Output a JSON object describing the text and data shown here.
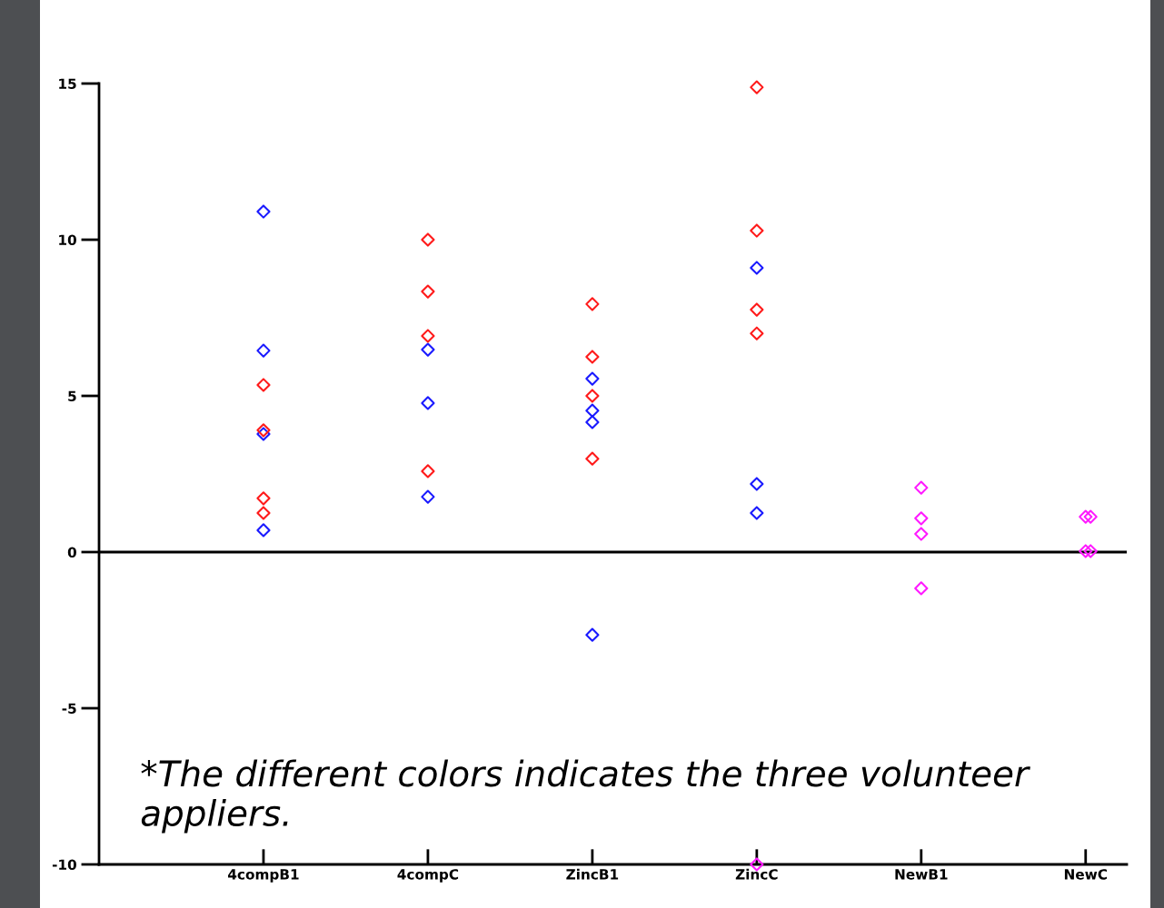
{
  "chart_data": {
    "type": "scatter",
    "categories": [
      "4compB1",
      "4compC",
      "ZincB1",
      "ZincC",
      "NewB1",
      "NewC"
    ],
    "series": [
      {
        "color": "#1a1aff",
        "x": [
          "4compB1",
          "4compB1",
          "4compB1",
          "4compB1",
          "4compC",
          "4compC",
          "4compC",
          "ZincB1",
          "ZincB1",
          "ZincB1",
          "ZincB1",
          "ZincC",
          "ZincC",
          "ZincC"
        ],
        "values": [
          10.9,
          6.45,
          3.78,
          0.7,
          6.48,
          4.77,
          1.77,
          5.55,
          4.53,
          4.16,
          -2.65,
          9.1,
          2.18,
          1.25
        ]
      },
      {
        "color": "#ff1a1a",
        "x": [
          "4compB1",
          "4compB1",
          "4compB1",
          "4compB1",
          "4compC",
          "4compC",
          "4compC",
          "4compC",
          "ZincB1",
          "ZincB1",
          "ZincB1",
          "ZincB1",
          "ZincC",
          "ZincC",
          "ZincC",
          "ZincC"
        ],
        "values": [
          5.35,
          3.9,
          1.72,
          1.25,
          10.0,
          8.34,
          6.92,
          2.59,
          7.94,
          6.25,
          5.0,
          2.99,
          14.88,
          10.29,
          7.76,
          7.0
        ]
      },
      {
        "color": "#ff1aff",
        "x": [
          "ZincC",
          "NewB1",
          "NewB1",
          "NewB1",
          "NewB1",
          "NewC",
          "NewC",
          "NewC",
          "NewC"
        ],
        "values": [
          -10.0,
          2.06,
          1.08,
          0.58,
          -1.16,
          1.13,
          1.13,
          0.03,
          0.03
        ]
      }
    ],
    "ylim": [
      -10,
      15
    ],
    "yticks": [
      -10,
      -5,
      0,
      5,
      10,
      15
    ],
    "grid": false,
    "legend": false,
    "marker": "diamond",
    "ref_lines": [
      {
        "axis": "y",
        "value": 0,
        "color": "#000000",
        "line_style": "solid"
      }
    ],
    "annotations": [
      "*The different colors indicates the three volunteer appliers."
    ]
  }
}
